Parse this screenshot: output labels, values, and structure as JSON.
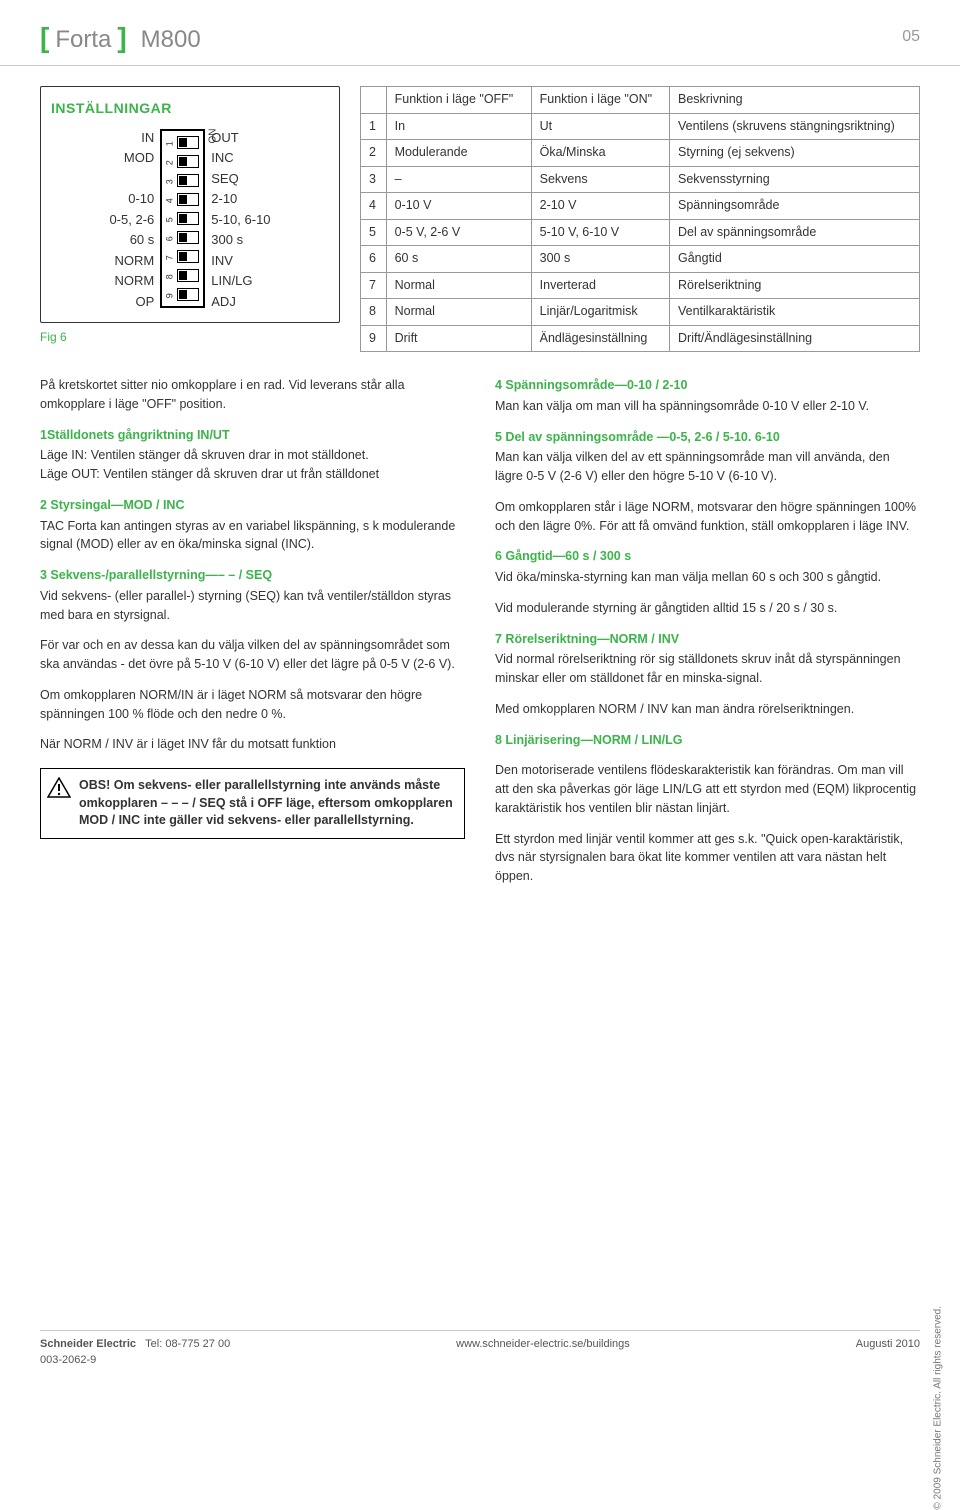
{
  "header": {
    "brand": "Forta",
    "model": "M800",
    "page": "05",
    "colors": {
      "accent": "#3cb44b",
      "text": "#333333"
    }
  },
  "dip": {
    "title": "INSTÄLLNINGAR",
    "fig": "Fig 6",
    "on_label": "ON",
    "left": [
      "IN",
      "MOD",
      "",
      "0-10",
      "0-5, 2-6",
      "60 s",
      "NORM",
      "NORM",
      "OP"
    ],
    "right": [
      "OUT",
      "INC",
      "SEQ",
      "2-10",
      "5-10, 6-10",
      "300 s",
      "INV",
      "LIN/LG",
      "ADJ"
    ],
    "numbers": [
      "1",
      "2",
      "3",
      "4",
      "5",
      "6",
      "7",
      "8",
      "9"
    ]
  },
  "func_table": {
    "headers": [
      "",
      "Funktion i läge \"OFF\"",
      "Funktion i läge \"ON\"",
      "Beskrivning"
    ],
    "rows": [
      [
        "1",
        "In",
        "Ut",
        "Ventilens (skruvens stängningsriktning)"
      ],
      [
        "2",
        "Modulerande",
        "Öka/Minska",
        "Styrning (ej sekvens)"
      ],
      [
        "3",
        "–",
        "Sekvens",
        "Sekvensstyrning"
      ],
      [
        "4",
        "0-10 V",
        "2-10 V",
        "Spänningsområde"
      ],
      [
        "5",
        "0-5 V, 2-6 V",
        "5-10 V, 6-10 V",
        "Del av spänningsområde"
      ],
      [
        "6",
        "60 s",
        "300 s",
        "Gångtid"
      ],
      [
        "7",
        "Normal",
        "Inverterad",
        "Rörelseriktning"
      ],
      [
        "8",
        "Normal",
        "Linjär/Logaritmisk",
        "Ventilkaraktäristik"
      ],
      [
        "9",
        "Drift",
        "Ändlägesinställning",
        "Drift/Ändlägesinställning"
      ]
    ]
  },
  "left_col": {
    "intro": "På kretskortet sitter nio omkopplare i en rad. Vid leverans står alla omkopplare i läge \"OFF\" position.",
    "s1h": "1Ställdonets gångriktning IN/UT",
    "s1a": "Läge IN: Ventilen stänger då skruven drar in mot ställdonet.",
    "s1b": "Läge OUT: Ventilen stänger då  skruven drar ut från ställdonet",
    "s2h": "2 Styrsingal—MOD / INC",
    "s2": "TAC Forta kan antingen styras av en variabel likspänning, s k modulerande signal (MOD) eller av en öka/minska signal (INC).",
    "s3h": "3 Sekvens-/parallellstyrning—– – / SEQ",
    "s3a": "Vid sekvens- (eller parallel-) styrning (SEQ) kan två ventiler/ställdon styras med bara en styrsignal.",
    "s3b": "För var och en av dessa kan du välja vilken del av spänningsområdet som ska användas - det övre på 5-10 V (6-10 V) eller det lägre på 0-5 V (2-6 V).",
    "s3c": "Om omkopplaren NORM/IN är i läget NORM så motsvarar den högre spänningen 100 % flöde och den nedre 0 %.",
    "s3d": "När NORM / INV är i läget INV får du motsatt funktion",
    "warn": "OBS! Om sekvens- eller parallellstyrning inte används måste omkopplaren – – – / SEQ stå i OFF läge, eftersom omkopplaren MOD / INC inte gäller vid sekvens- eller parallellstyrning."
  },
  "right_col": {
    "s4h": "4 Spänningsområde—0-10 / 2-10",
    "s4": "Man kan välja om man vill ha spänningsområde 0-10 V eller 2-10 V.",
    "s5h": "5 Del av spänningsområde —0-5, 2-6 / 5-10. 6-10",
    "s5": "Man kan välja vilken del av ett spänningsområde man vill använda, den lägre 0-5 V (2-6 V) eller den högre 5-10 V (6-10 V).",
    "s5b": "Om omkopplaren står i läge NORM, motsvarar den högre spänningen 100% och den lägre 0%. För att få omvänd funktion, ställ omkopplaren i läge INV.",
    "s6h": "6 Gångtid—60 s / 300 s",
    "s6a": "Vid öka/minska-styrning kan man välja mellan 60 s och 300 s gångtid.",
    "s6b": "Vid modulerande styrning är gångtiden alltid 15 s / 20 s / 30 s.",
    "s7h": "7 Rörelseriktning—NORM / INV",
    "s7a": "Vid normal rörelseriktning rör sig ställdonets skruv inåt då styrspänningen minskar eller om ställdonet får en minska-signal.",
    "s7b": "Med omkopplaren NORM / INV kan man ändra rörelseriktningen.",
    "s8h": "8 Linjärisering—NORM / LIN/LG",
    "s8a": "Den motoriserade ventilens flödeskarakteristik kan förändras. Om man vill att den ska påverkas gör läge LIN/LG att ett styrdon med (EQM) likprocentig karaktäristik hos ventilen blir nästan linjärt.",
    "s8b": "Ett styrdon med linjär ventil kommer att ges s.k. \"Quick open-karaktäristik, dvs när styrsignalen bara ökat lite kommer ventilen att vara nästan helt öppen."
  },
  "footer": {
    "left1": "Schneider Electric",
    "left2": "Tel: 08-775 27 00",
    "left3": "003-2062-9",
    "mid": "www.schneider-electric.se/buildings",
    "right": "Augusti 2010",
    "copyright": "© 2009 Schneider Electric. All rights reserved."
  }
}
